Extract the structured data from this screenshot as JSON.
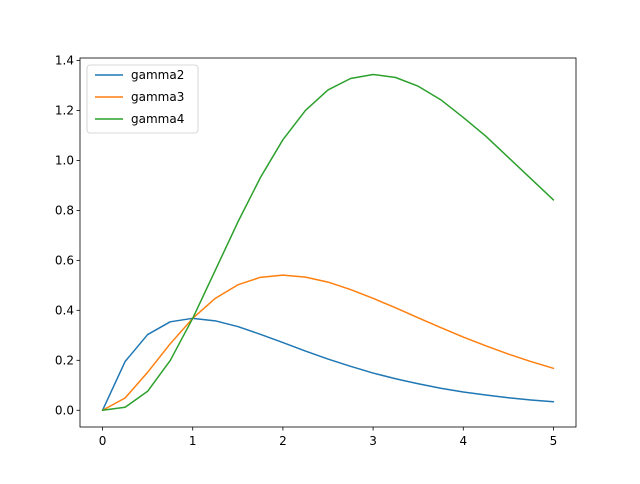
{
  "chart_data": {
    "type": "line",
    "title": "",
    "xlabel": "",
    "ylabel": "",
    "xlim": [
      -0.25,
      5.25
    ],
    "ylim": [
      -0.067,
      1.41
    ],
    "grid": false,
    "legend_position": "top-left",
    "xticks": [
      0,
      1,
      2,
      3,
      4,
      5
    ],
    "xtick_labels": [
      "0",
      "1",
      "2",
      "3",
      "4",
      "5"
    ],
    "yticks": [
      0.0,
      0.2,
      0.4,
      0.6,
      0.8,
      1.0,
      1.2,
      1.4
    ],
    "ytick_labels": [
      "0.0",
      "0.2",
      "0.4",
      "0.6",
      "0.8",
      "1.0",
      "1.2",
      "1.4"
    ],
    "x": [
      0,
      0.25,
      0.5,
      0.75,
      1,
      1.25,
      1.5,
      1.75,
      2,
      2.25,
      2.5,
      2.75,
      3,
      3.25,
      3.5,
      3.75,
      4,
      4.25,
      4.5,
      4.75,
      5
    ],
    "series": [
      {
        "name": "gamma2",
        "color": "#1f77b4",
        "values": [
          0,
          0.195,
          0.303,
          0.354,
          0.368,
          0.358,
          0.335,
          0.304,
          0.271,
          0.237,
          0.205,
          0.176,
          0.149,
          0.126,
          0.106,
          0.088,
          0.073,
          0.061,
          0.05,
          0.041,
          0.034
        ]
      },
      {
        "name": "gamma3",
        "color": "#ff7f0e",
        "values": [
          0,
          0.049,
          0.152,
          0.266,
          0.368,
          0.448,
          0.502,
          0.532,
          0.541,
          0.533,
          0.513,
          0.483,
          0.448,
          0.41,
          0.37,
          0.331,
          0.293,
          0.258,
          0.225,
          0.195,
          0.168
        ]
      },
      {
        "name": "gamma4",
        "color": "#2ca02c",
        "values": [
          0,
          0.012,
          0.076,
          0.199,
          0.368,
          0.56,
          0.753,
          0.931,
          1.083,
          1.2,
          1.282,
          1.328,
          1.344,
          1.332,
          1.297,
          1.243,
          1.172,
          1.097,
          1.012,
          0.927,
          0.842
        ]
      }
    ]
  }
}
